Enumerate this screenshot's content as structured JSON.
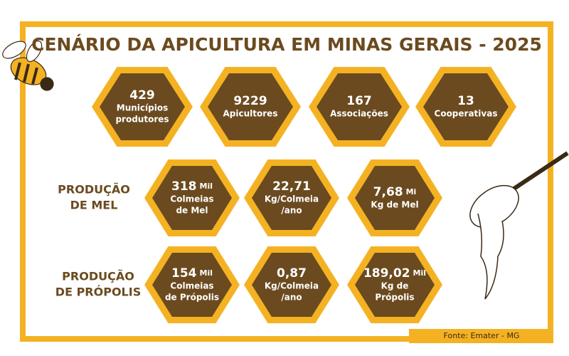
{
  "header": {
    "title": "CENÁRIO DA APICULTURA EM MINAS GERAIS - 2025"
  },
  "rows": [
    {
      "items": [
        {
          "value": "429",
          "label": [
            "Municípios",
            "produtores"
          ]
        },
        {
          "value": "9229",
          "label": [
            "Apicultores"
          ]
        },
        {
          "value": "167",
          "label": [
            "Associações"
          ]
        },
        {
          "value": "13",
          "label": [
            "Cooperativas"
          ]
        }
      ]
    },
    {
      "heading": [
        "PRODUÇÃO",
        "DE MEL"
      ],
      "items": [
        {
          "value": "318",
          "unit": "Mil",
          "label": [
            "Colmeias",
            "de Mel"
          ]
        },
        {
          "value": "22,71",
          "label": [
            "Kg/Colmeia",
            "/ano"
          ]
        },
        {
          "value": "7,68",
          "unit": "Mi",
          "label": [
            "Kg de Mel"
          ]
        }
      ]
    },
    {
      "heading": [
        "PRODUÇÃO",
        "DE PRÓPOLIS"
      ],
      "items": [
        {
          "value": "154",
          "unit": "Mil",
          "label": [
            "Colmeias",
            "de Própolis"
          ]
        },
        {
          "value": "0,87",
          "label": [
            "Kg/Colmeia",
            "/ano"
          ]
        },
        {
          "value": "189,02",
          "unit": "Mil",
          "label": [
            "Kg de",
            "Própolis"
          ]
        }
      ]
    }
  ],
  "footer": {
    "source": "Fonte: Emater - MG"
  }
}
